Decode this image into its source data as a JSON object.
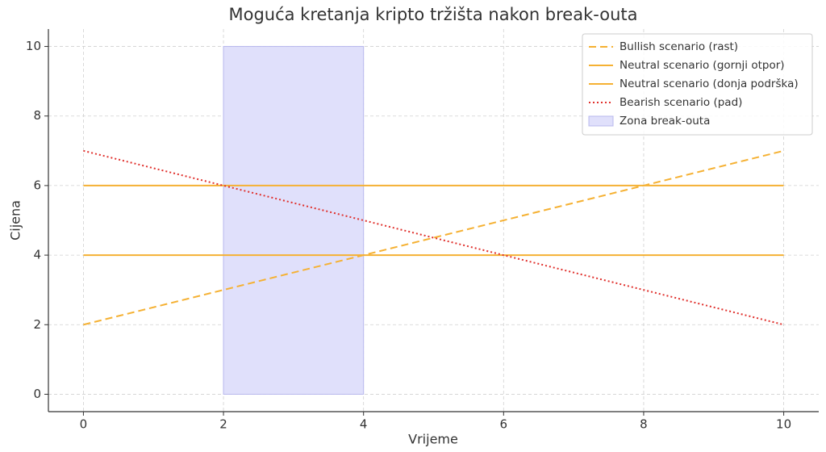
{
  "chart_data": {
    "type": "line",
    "title": "Moguća kretanja kripto tržišta nakon break-outa",
    "xlabel": "Vrijeme",
    "ylabel": "Cijena",
    "x": [
      0,
      10
    ],
    "series": [
      {
        "name": "Bullish scenario (rast)",
        "color": "#f5b133",
        "style": "dashed",
        "values": [
          2,
          7
        ]
      },
      {
        "name": "Neutral scenario (gornji otpor)",
        "color": "#f5b133",
        "style": "solid",
        "values": [
          6,
          6
        ]
      },
      {
        "name": "Neutral scenario (donja podrška)",
        "color": "#f5b133",
        "style": "solid",
        "values": [
          4,
          4
        ]
      },
      {
        "name": "Bearish scenario (pad)",
        "color": "#e0302c",
        "style": "dotted",
        "values": [
          7,
          2
        ]
      }
    ],
    "spans": [
      {
        "name": "Zona break-outa",
        "color": "#e0e0fb",
        "edge": "#b8b8ee",
        "x": [
          2,
          4
        ],
        "y": [
          0,
          10
        ]
      }
    ],
    "xlim": [
      -0.5,
      10.5
    ],
    "ylim": [
      -0.5,
      10.5
    ],
    "xticks": [
      0,
      2,
      4,
      6,
      8,
      10
    ],
    "yticks": [
      0,
      2,
      4,
      6,
      8,
      10
    ],
    "grid": true,
    "legend": "upper right"
  }
}
